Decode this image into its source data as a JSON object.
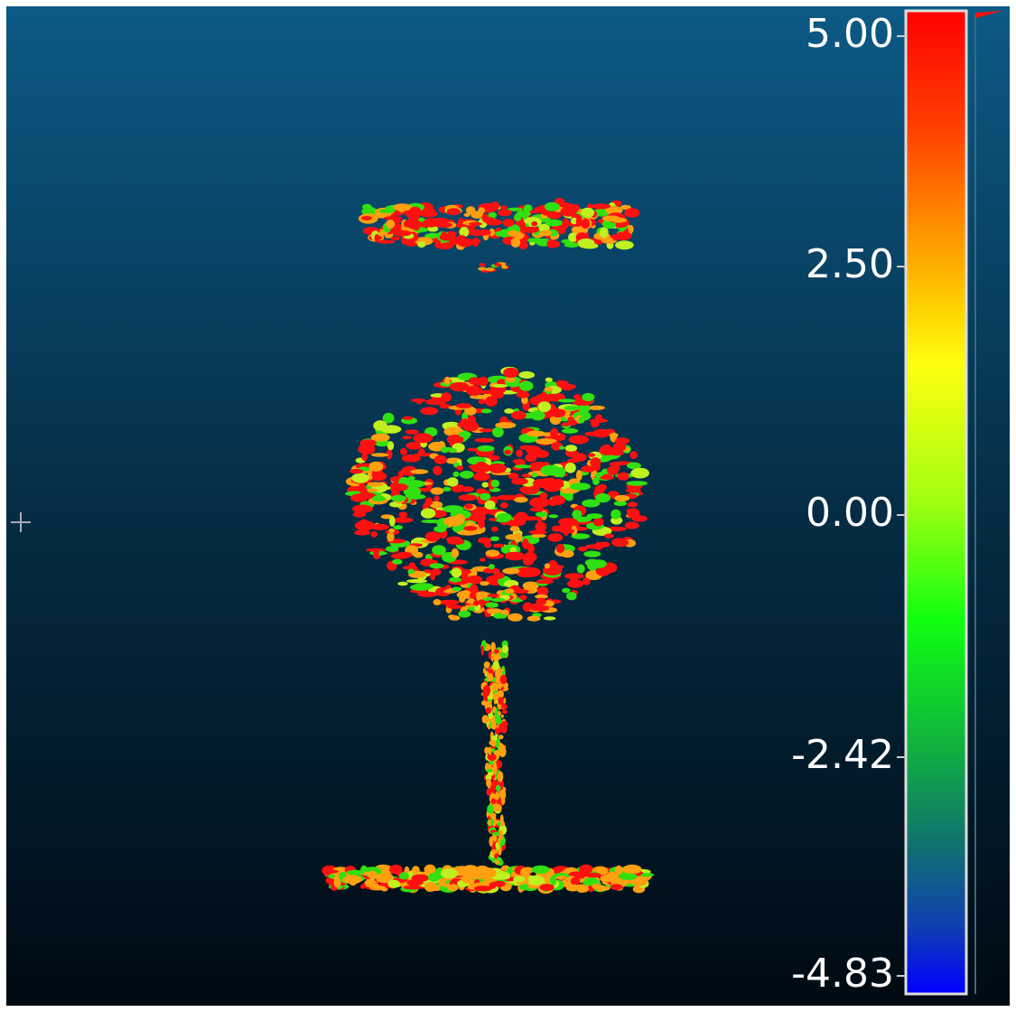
{
  "color_scale": {
    "ticks": [
      "5.00",
      "2.50",
      "0.00",
      "-2.42",
      "-4.83"
    ]
  }
}
